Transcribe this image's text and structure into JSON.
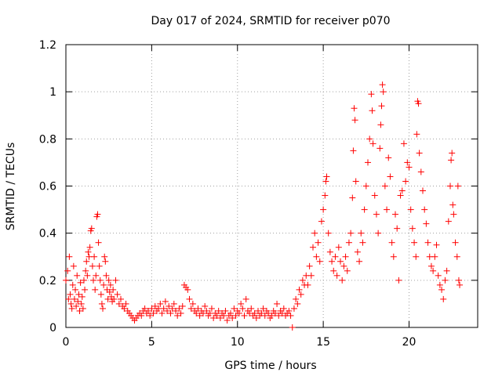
{
  "chart_data": {
    "type": "scatter",
    "title": "Day 017 of 2024, SRMTID for receiver p070",
    "xlabel": "GPS time / hours",
    "ylabel": "SRMTID / TECUs",
    "xlim": [
      0,
      24
    ],
    "ylim": [
      0,
      1.2
    ],
    "xticks": [
      0,
      5,
      10,
      15,
      20
    ],
    "yticks": [
      0,
      0.2,
      0.4,
      0.6,
      0.8,
      1,
      1.2
    ],
    "xtick_labels": [
      "0",
      "5",
      "10",
      "15",
      "20"
    ],
    "ytick_labels": [
      "0",
      "0.2",
      "0.4",
      "0.6",
      "0.8",
      "1",
      "1.2"
    ],
    "grid": true,
    "marker": "+",
    "color": "#ff0000",
    "series": [
      {
        "name": "SRMTID",
        "points": [
          [
            0.0,
            0.2
          ],
          [
            0.1,
            0.24
          ],
          [
            0.15,
            0.12
          ],
          [
            0.2,
            0.3
          ],
          [
            0.25,
            0.14
          ],
          [
            0.3,
            0.1
          ],
          [
            0.35,
            0.08
          ],
          [
            0.4,
            0.18
          ],
          [
            0.45,
            0.26
          ],
          [
            0.5,
            0.12
          ],
          [
            0.55,
            0.16
          ],
          [
            0.6,
            0.09
          ],
          [
            0.65,
            0.22
          ],
          [
            0.7,
            0.11
          ],
          [
            0.75,
            0.14
          ],
          [
            0.8,
            0.07
          ],
          [
            0.85,
            0.19
          ],
          [
            0.9,
            0.1
          ],
          [
            0.95,
            0.13
          ],
          [
            1.0,
            0.08
          ],
          [
            1.05,
            0.2
          ],
          [
            1.1,
            0.16
          ],
          [
            1.15,
            0.24
          ],
          [
            1.2,
            0.28
          ],
          [
            1.25,
            0.22
          ],
          [
            1.3,
            0.32
          ],
          [
            1.35,
            0.3
          ],
          [
            1.4,
            0.34
          ],
          [
            1.45,
            0.41
          ],
          [
            1.5,
            0.42
          ],
          [
            1.55,
            0.26
          ],
          [
            1.6,
            0.2
          ],
          [
            1.65,
            0.3
          ],
          [
            1.7,
            0.16
          ],
          [
            1.75,
            0.22
          ],
          [
            1.8,
            0.47
          ],
          [
            1.85,
            0.48
          ],
          [
            1.9,
            0.36
          ],
          [
            1.95,
            0.26
          ],
          [
            2.0,
            0.2
          ],
          [
            2.05,
            0.14
          ],
          [
            2.1,
            0.1
          ],
          [
            2.15,
            0.08
          ],
          [
            2.2,
            0.18
          ],
          [
            2.25,
            0.3
          ],
          [
            2.3,
            0.28
          ],
          [
            2.35,
            0.22
          ],
          [
            2.4,
            0.16
          ],
          [
            2.45,
            0.12
          ],
          [
            2.5,
            0.2
          ],
          [
            2.55,
            0.15
          ],
          [
            2.6,
            0.18
          ],
          [
            2.65,
            0.13
          ],
          [
            2.7,
            0.11
          ],
          [
            2.75,
            0.16
          ],
          [
            2.8,
            0.12
          ],
          [
            2.9,
            0.2
          ],
          [
            3.0,
            0.14
          ],
          [
            3.1,
            0.1
          ],
          [
            3.2,
            0.12
          ],
          [
            3.3,
            0.09
          ],
          [
            3.4,
            0.08
          ],
          [
            3.5,
            0.1
          ],
          [
            3.6,
            0.07
          ],
          [
            3.7,
            0.06
          ],
          [
            3.8,
            0.05
          ],
          [
            3.9,
            0.04
          ],
          [
            4.0,
            0.03
          ],
          [
            4.1,
            0.04
          ],
          [
            4.2,
            0.05
          ],
          [
            4.3,
            0.06
          ],
          [
            4.4,
            0.05
          ],
          [
            4.5,
            0.07
          ],
          [
            4.6,
            0.08
          ],
          [
            4.7,
            0.06
          ],
          [
            4.8,
            0.07
          ],
          [
            4.9,
            0.05
          ],
          [
            5.0,
            0.08
          ],
          [
            5.1,
            0.06
          ],
          [
            5.2,
            0.09
          ],
          [
            5.3,
            0.07
          ],
          [
            5.4,
            0.08
          ],
          [
            5.5,
            0.1
          ],
          [
            5.6,
            0.06
          ],
          [
            5.7,
            0.08
          ],
          [
            5.8,
            0.11
          ],
          [
            5.9,
            0.07
          ],
          [
            6.0,
            0.09
          ],
          [
            6.1,
            0.06
          ],
          [
            6.2,
            0.08
          ],
          [
            6.3,
            0.1
          ],
          [
            6.4,
            0.07
          ],
          [
            6.5,
            0.05
          ],
          [
            6.6,
            0.08
          ],
          [
            6.7,
            0.06
          ],
          [
            6.8,
            0.09
          ],
          [
            6.9,
            0.18
          ],
          [
            7.0,
            0.17
          ],
          [
            7.1,
            0.16
          ],
          [
            7.2,
            0.12
          ],
          [
            7.3,
            0.08
          ],
          [
            7.4,
            0.1
          ],
          [
            7.5,
            0.07
          ],
          [
            7.6,
            0.06
          ],
          [
            7.7,
            0.08
          ],
          [
            7.8,
            0.05
          ],
          [
            7.9,
            0.07
          ],
          [
            8.0,
            0.06
          ],
          [
            8.1,
            0.09
          ],
          [
            8.2,
            0.07
          ],
          [
            8.3,
            0.05
          ],
          [
            8.4,
            0.06
          ],
          [
            8.5,
            0.08
          ],
          [
            8.6,
            0.04
          ],
          [
            8.7,
            0.06
          ],
          [
            8.8,
            0.05
          ],
          [
            8.9,
            0.07
          ],
          [
            9.0,
            0.04
          ],
          [
            9.1,
            0.06
          ],
          [
            9.2,
            0.05
          ],
          [
            9.3,
            0.07
          ],
          [
            9.4,
            0.03
          ],
          [
            9.5,
            0.05
          ],
          [
            9.6,
            0.06
          ],
          [
            9.7,
            0.04
          ],
          [
            9.8,
            0.08
          ],
          [
            9.9,
            0.05
          ],
          [
            10.0,
            0.07
          ],
          [
            10.1,
            0.06
          ],
          [
            10.2,
            0.1
          ],
          [
            10.3,
            0.08
          ],
          [
            10.4,
            0.05
          ],
          [
            10.5,
            0.12
          ],
          [
            10.6,
            0.07
          ],
          [
            10.7,
            0.06
          ],
          [
            10.8,
            0.08
          ],
          [
            10.9,
            0.05
          ],
          [
            11.0,
            0.06
          ],
          [
            11.1,
            0.04
          ],
          [
            11.2,
            0.07
          ],
          [
            11.3,
            0.05
          ],
          [
            11.4,
            0.06
          ],
          [
            11.5,
            0.08
          ],
          [
            11.6,
            0.05
          ],
          [
            11.7,
            0.07
          ],
          [
            11.8,
            0.06
          ],
          [
            11.9,
            0.04
          ],
          [
            12.0,
            0.05
          ],
          [
            12.1,
            0.07
          ],
          [
            12.2,
            0.06
          ],
          [
            12.3,
            0.1
          ],
          [
            12.4,
            0.05
          ],
          [
            12.5,
            0.07
          ],
          [
            12.6,
            0.06
          ],
          [
            12.7,
            0.08
          ],
          [
            12.8,
            0.05
          ],
          [
            12.9,
            0.06
          ],
          [
            13.0,
            0.07
          ],
          [
            13.1,
            0.05
          ],
          [
            13.2,
            0.0
          ],
          [
            13.3,
            0.08
          ],
          [
            13.4,
            0.12
          ],
          [
            13.5,
            0.1
          ],
          [
            13.6,
            0.16
          ],
          [
            13.7,
            0.14
          ],
          [
            13.8,
            0.2
          ],
          [
            13.9,
            0.18
          ],
          [
            14.0,
            0.22
          ],
          [
            14.1,
            0.18
          ],
          [
            14.2,
            0.26
          ],
          [
            14.3,
            0.22
          ],
          [
            14.4,
            0.34
          ],
          [
            14.5,
            0.4
          ],
          [
            14.6,
            0.3
          ],
          [
            14.7,
            0.36
          ],
          [
            14.8,
            0.28
          ],
          [
            14.9,
            0.45
          ],
          [
            15.0,
            0.5
          ],
          [
            15.1,
            0.56
          ],
          [
            15.15,
            0.62
          ],
          [
            15.2,
            0.64
          ],
          [
            15.3,
            0.4
          ],
          [
            15.4,
            0.32
          ],
          [
            15.5,
            0.28
          ],
          [
            15.6,
            0.24
          ],
          [
            15.7,
            0.3
          ],
          [
            15.8,
            0.22
          ],
          [
            15.9,
            0.34
          ],
          [
            16.0,
            0.28
          ],
          [
            16.1,
            0.2
          ],
          [
            16.2,
            0.26
          ],
          [
            16.3,
            0.3
          ],
          [
            16.4,
            0.24
          ],
          [
            16.5,
            0.36
          ],
          [
            16.6,
            0.4
          ],
          [
            16.7,
            0.55
          ],
          [
            16.75,
            0.75
          ],
          [
            16.8,
            0.93
          ],
          [
            16.85,
            0.88
          ],
          [
            16.9,
            0.62
          ],
          [
            17.0,
            0.32
          ],
          [
            17.1,
            0.28
          ],
          [
            17.2,
            0.4
          ],
          [
            17.3,
            0.36
          ],
          [
            17.4,
            0.5
          ],
          [
            17.5,
            0.6
          ],
          [
            17.6,
            0.7
          ],
          [
            17.7,
            0.8
          ],
          [
            17.8,
            0.99
          ],
          [
            17.85,
            0.92
          ],
          [
            17.9,
            0.78
          ],
          [
            18.0,
            0.56
          ],
          [
            18.1,
            0.48
          ],
          [
            18.2,
            0.4
          ],
          [
            18.3,
            0.76
          ],
          [
            18.35,
            0.86
          ],
          [
            18.4,
            0.94
          ],
          [
            18.45,
            1.03
          ],
          [
            18.5,
            1.0
          ],
          [
            18.6,
            0.6
          ],
          [
            18.7,
            0.5
          ],
          [
            18.8,
            0.72
          ],
          [
            18.9,
            0.64
          ],
          [
            19.0,
            0.36
          ],
          [
            19.1,
            0.3
          ],
          [
            19.2,
            0.48
          ],
          [
            19.3,
            0.42
          ],
          [
            19.4,
            0.2
          ],
          [
            19.5,
            0.56
          ],
          [
            19.6,
            0.58
          ],
          [
            19.7,
            0.78
          ],
          [
            19.8,
            0.62
          ],
          [
            19.9,
            0.7
          ],
          [
            20.0,
            0.68
          ],
          [
            20.1,
            0.5
          ],
          [
            20.2,
            0.42
          ],
          [
            20.3,
            0.36
          ],
          [
            20.4,
            0.3
          ],
          [
            20.45,
            0.82
          ],
          [
            20.5,
            0.96
          ],
          [
            20.55,
            0.95
          ],
          [
            20.6,
            0.74
          ],
          [
            20.7,
            0.66
          ],
          [
            20.8,
            0.58
          ],
          [
            20.9,
            0.5
          ],
          [
            21.0,
            0.44
          ],
          [
            21.1,
            0.36
          ],
          [
            21.2,
            0.3
          ],
          [
            21.3,
            0.26
          ],
          [
            21.4,
            0.24
          ],
          [
            21.5,
            0.3
          ],
          [
            21.6,
            0.35
          ],
          [
            21.7,
            0.22
          ],
          [
            21.8,
            0.18
          ],
          [
            21.9,
            0.16
          ],
          [
            22.0,
            0.12
          ],
          [
            22.1,
            0.2
          ],
          [
            22.2,
            0.24
          ],
          [
            22.3,
            0.45
          ],
          [
            22.4,
            0.6
          ],
          [
            22.45,
            0.71
          ],
          [
            22.5,
            0.74
          ],
          [
            22.55,
            0.52
          ],
          [
            22.6,
            0.48
          ],
          [
            22.7,
            0.36
          ],
          [
            22.8,
            0.3
          ],
          [
            22.85,
            0.6
          ],
          [
            22.9,
            0.2
          ],
          [
            22.95,
            0.18
          ]
        ]
      }
    ]
  }
}
